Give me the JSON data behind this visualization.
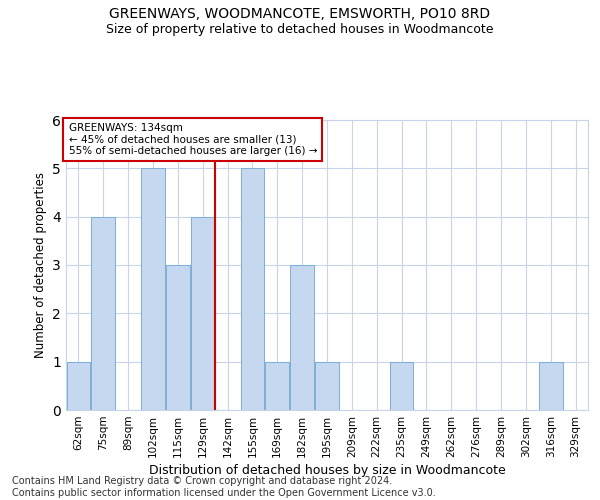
{
  "title": "GREENWAYS, WOODMANCOTE, EMSWORTH, PO10 8RD",
  "subtitle": "Size of property relative to detached houses in Woodmancote",
  "xlabel": "Distribution of detached houses by size in Woodmancote",
  "ylabel": "Number of detached properties",
  "categories": [
    "62sqm",
    "75sqm",
    "89sqm",
    "102sqm",
    "115sqm",
    "129sqm",
    "142sqm",
    "155sqm",
    "169sqm",
    "182sqm",
    "195sqm",
    "209sqm",
    "222sqm",
    "235sqm",
    "249sqm",
    "262sqm",
    "276sqm",
    "289sqm",
    "302sqm",
    "316sqm",
    "329sqm"
  ],
  "values": [
    1,
    4,
    0,
    5,
    3,
    4,
    0,
    5,
    1,
    3,
    1,
    0,
    0,
    1,
    0,
    0,
    0,
    0,
    0,
    1,
    0
  ],
  "bar_color": "#c5d8f0",
  "bar_edge_color": "#7bafd4",
  "reference_line_x": 5.5,
  "annotation_text": "GREENWAYS: 134sqm\n← 45% of detached houses are smaller (13)\n55% of semi-detached houses are larger (16) →",
  "annotation_box_color": "#ffffff",
  "annotation_box_edge_color": "#cc0000",
  "ylim": [
    0,
    6
  ],
  "yticks": [
    0,
    1,
    2,
    3,
    4,
    5,
    6
  ],
  "title_fontsize": 10,
  "subtitle_fontsize": 9,
  "xlabel_fontsize": 9,
  "ylabel_fontsize": 8.5,
  "footnote": "Contains HM Land Registry data © Crown copyright and database right 2024.\nContains public sector information licensed under the Open Government Licence v3.0.",
  "footnote_fontsize": 7,
  "background_color": "#ffffff",
  "grid_color": "#c8d4e8"
}
